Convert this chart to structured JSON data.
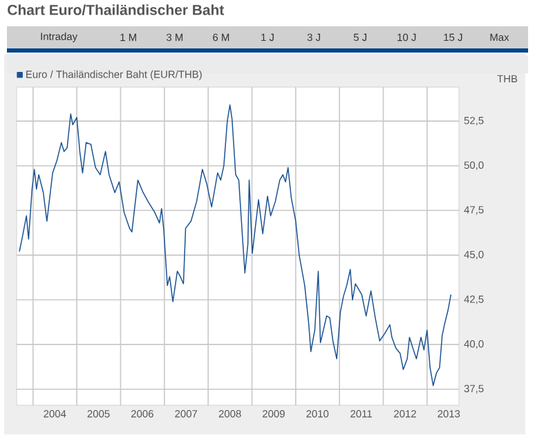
{
  "chart_data": {
    "type": "line",
    "title": "Chart Euro/Thailändischer Baht",
    "ylabel": "THB",
    "annotations": [
      "Intraday",
      "1 M",
      "3 M",
      "6 M",
      "1 J",
      "3 J",
      "5 J",
      "10 J",
      "15 J",
      "Max"
    ],
    "series": [
      {
        "name": "Euro / Thailändischer Baht (EUR/THB)",
        "color": "#1a5293",
        "x": [
          "2003-09-09",
          "2003-10-01",
          "2003-11-07",
          "2003-11-25",
          "2003-12-24",
          "2004-01-12",
          "2004-01-30",
          "2004-02-18",
          "2004-03-27",
          "2004-04-26",
          "2004-06-13",
          "2004-07-19",
          "2004-08-25",
          "2004-09-16",
          "2004-10-12",
          "2004-11-11",
          "2004-11-28",
          "2005-01-01",
          "2005-01-26",
          "2005-02-18",
          "2005-03-20",
          "2005-04-28",
          "2005-06-06",
          "2005-07-15",
          "2005-08-28",
          "2005-09-27",
          "2005-11-14",
          "2005-12-20",
          "2006-01-30",
          "2006-03-17",
          "2006-04-05",
          "2006-05-25",
          "2006-07-08",
          "2006-08-18",
          "2006-10-12",
          "2006-11-21",
          "2006-12-09",
          "2006-12-27",
          "2007-01-26",
          "2007-02-14",
          "2007-03-13",
          "2007-04-19",
          "2007-05-14",
          "2007-06-09",
          "2007-06-27",
          "2007-08-11",
          "2007-09-27",
          "2007-11-14",
          "2007-12-20",
          "2008-01-30",
          "2008-03-20",
          "2008-04-15",
          "2008-05-11",
          "2008-06-09",
          "2008-07-01",
          "2008-07-19",
          "2008-08-18",
          "2008-09-13",
          "2008-10-12",
          "2008-11-03",
          "2008-11-28",
          "2008-12-09",
          "2009-01-04",
          "2009-02-25",
          "2009-04-01",
          "2009-05-11",
          "2009-06-06",
          "2009-07-15",
          "2009-08-21",
          "2009-09-16",
          "2009-10-08",
          "2009-10-29",
          "2009-11-25",
          "2010-01-01",
          "2010-01-30",
          "2010-03-17",
          "2010-04-19",
          "2010-05-07",
          "2010-06-09",
          "2010-07-08",
          "2010-07-26",
          "2010-09-16",
          "2010-10-12",
          "2010-11-07",
          "2010-12-09",
          "2011-01-08",
          "2011-02-03",
          "2011-03-02",
          "2011-04-01",
          "2011-04-19",
          "2011-05-14",
          "2011-07-05",
          "2011-08-11",
          "2011-09-20",
          "2011-10-26",
          "2011-12-02",
          "2012-01-12",
          "2012-02-25",
          "2012-03-13",
          "2012-04-15",
          "2012-05-21",
          "2012-06-16",
          "2012-07-19",
          "2012-08-07",
          "2012-09-09",
          "2012-10-04",
          "2012-11-11",
          "2012-12-06",
          "2013-01-01",
          "2013-01-26",
          "2013-02-21",
          "2013-03-20",
          "2013-04-15",
          "2013-05-07",
          "2013-05-29",
          "2013-06-24",
          "2013-07-19"
        ],
        "values": [
          45.2,
          45.9,
          47.2,
          45.9,
          48.7,
          49.8,
          48.7,
          49.5,
          48.5,
          46.9,
          49.6,
          50.3,
          51.3,
          50.8,
          51.0,
          52.9,
          52.3,
          52.7,
          50.8,
          49.6,
          51.3,
          51.2,
          49.9,
          49.5,
          50.8,
          49.5,
          48.5,
          49.1,
          47.4,
          46.5,
          46.3,
          49.2,
          48.5,
          48.0,
          47.4,
          46.8,
          47.6,
          46.4,
          43.3,
          43.8,
          42.4,
          44.1,
          43.8,
          43.4,
          46.5,
          46.9,
          48.0,
          49.8,
          49.0,
          47.7,
          49.6,
          49.2,
          50.0,
          52.5,
          53.4,
          52.6,
          49.5,
          49.2,
          46.2,
          44.0,
          45.6,
          49.2,
          45.1,
          48.1,
          46.2,
          48.3,
          47.2,
          48.0,
          49.2,
          49.5,
          49.1,
          49.9,
          48.2,
          46.9,
          45.0,
          43.3,
          41.2,
          39.6,
          40.8,
          44.1,
          40.1,
          41.6,
          41.5,
          40.2,
          39.2,
          41.8,
          42.7,
          43.3,
          44.2,
          42.5,
          43.4,
          42.8,
          41.6,
          43.0,
          41.5,
          40.2,
          40.6,
          41.1,
          40.4,
          39.8,
          39.5,
          38.6,
          39.2,
          40.4,
          39.7,
          39.2,
          40.4,
          39.7,
          40.8,
          38.7,
          37.7,
          38.4,
          38.7,
          40.5,
          41.2,
          41.9,
          42.8
        ]
      }
    ],
    "xlim": [
      "2003-08-17",
      "2013-09-24"
    ],
    "xticks": [
      {
        "value": "2004-01-01",
        "label": null
      },
      {
        "value": "2004-07-01",
        "label": "2004"
      },
      {
        "value": "2005-01-01",
        "label": null
      },
      {
        "value": "2005-07-01",
        "label": "2005"
      },
      {
        "value": "2006-01-01",
        "label": null
      },
      {
        "value": "2006-07-01",
        "label": "2006"
      },
      {
        "value": "2007-01-01",
        "label": null
      },
      {
        "value": "2007-07-01",
        "label": "2007"
      },
      {
        "value": "2008-01-01",
        "label": null
      },
      {
        "value": "2008-07-01",
        "label": "2008"
      },
      {
        "value": "2009-01-01",
        "label": null
      },
      {
        "value": "2009-07-01",
        "label": "2009"
      },
      {
        "value": "2010-01-01",
        "label": null
      },
      {
        "value": "2010-07-01",
        "label": "2010"
      },
      {
        "value": "2011-01-01",
        "label": null
      },
      {
        "value": "2011-07-01",
        "label": "2011"
      },
      {
        "value": "2012-01-01",
        "label": null
      },
      {
        "value": "2012-07-01",
        "label": "2012"
      },
      {
        "value": "2013-01-01",
        "label": null
      },
      {
        "value": "2013-07-01",
        "label": "2013"
      }
    ],
    "ylim": [
      36.6,
      54.4
    ],
    "yticks": [
      {
        "value": 37.5,
        "label": "37,5"
      },
      {
        "value": 40.0,
        "label": "40,0"
      },
      {
        "value": 42.5,
        "label": "42,5"
      },
      {
        "value": 45.0,
        "label": "45,0"
      },
      {
        "value": 47.5,
        "label": "47,5"
      },
      {
        "value": 50.0,
        "label": "50,0"
      },
      {
        "value": 52.5,
        "label": "52,5"
      }
    ],
    "grid": true,
    "legend": "top left",
    "marker": "none",
    "line_style": "solid"
  }
}
